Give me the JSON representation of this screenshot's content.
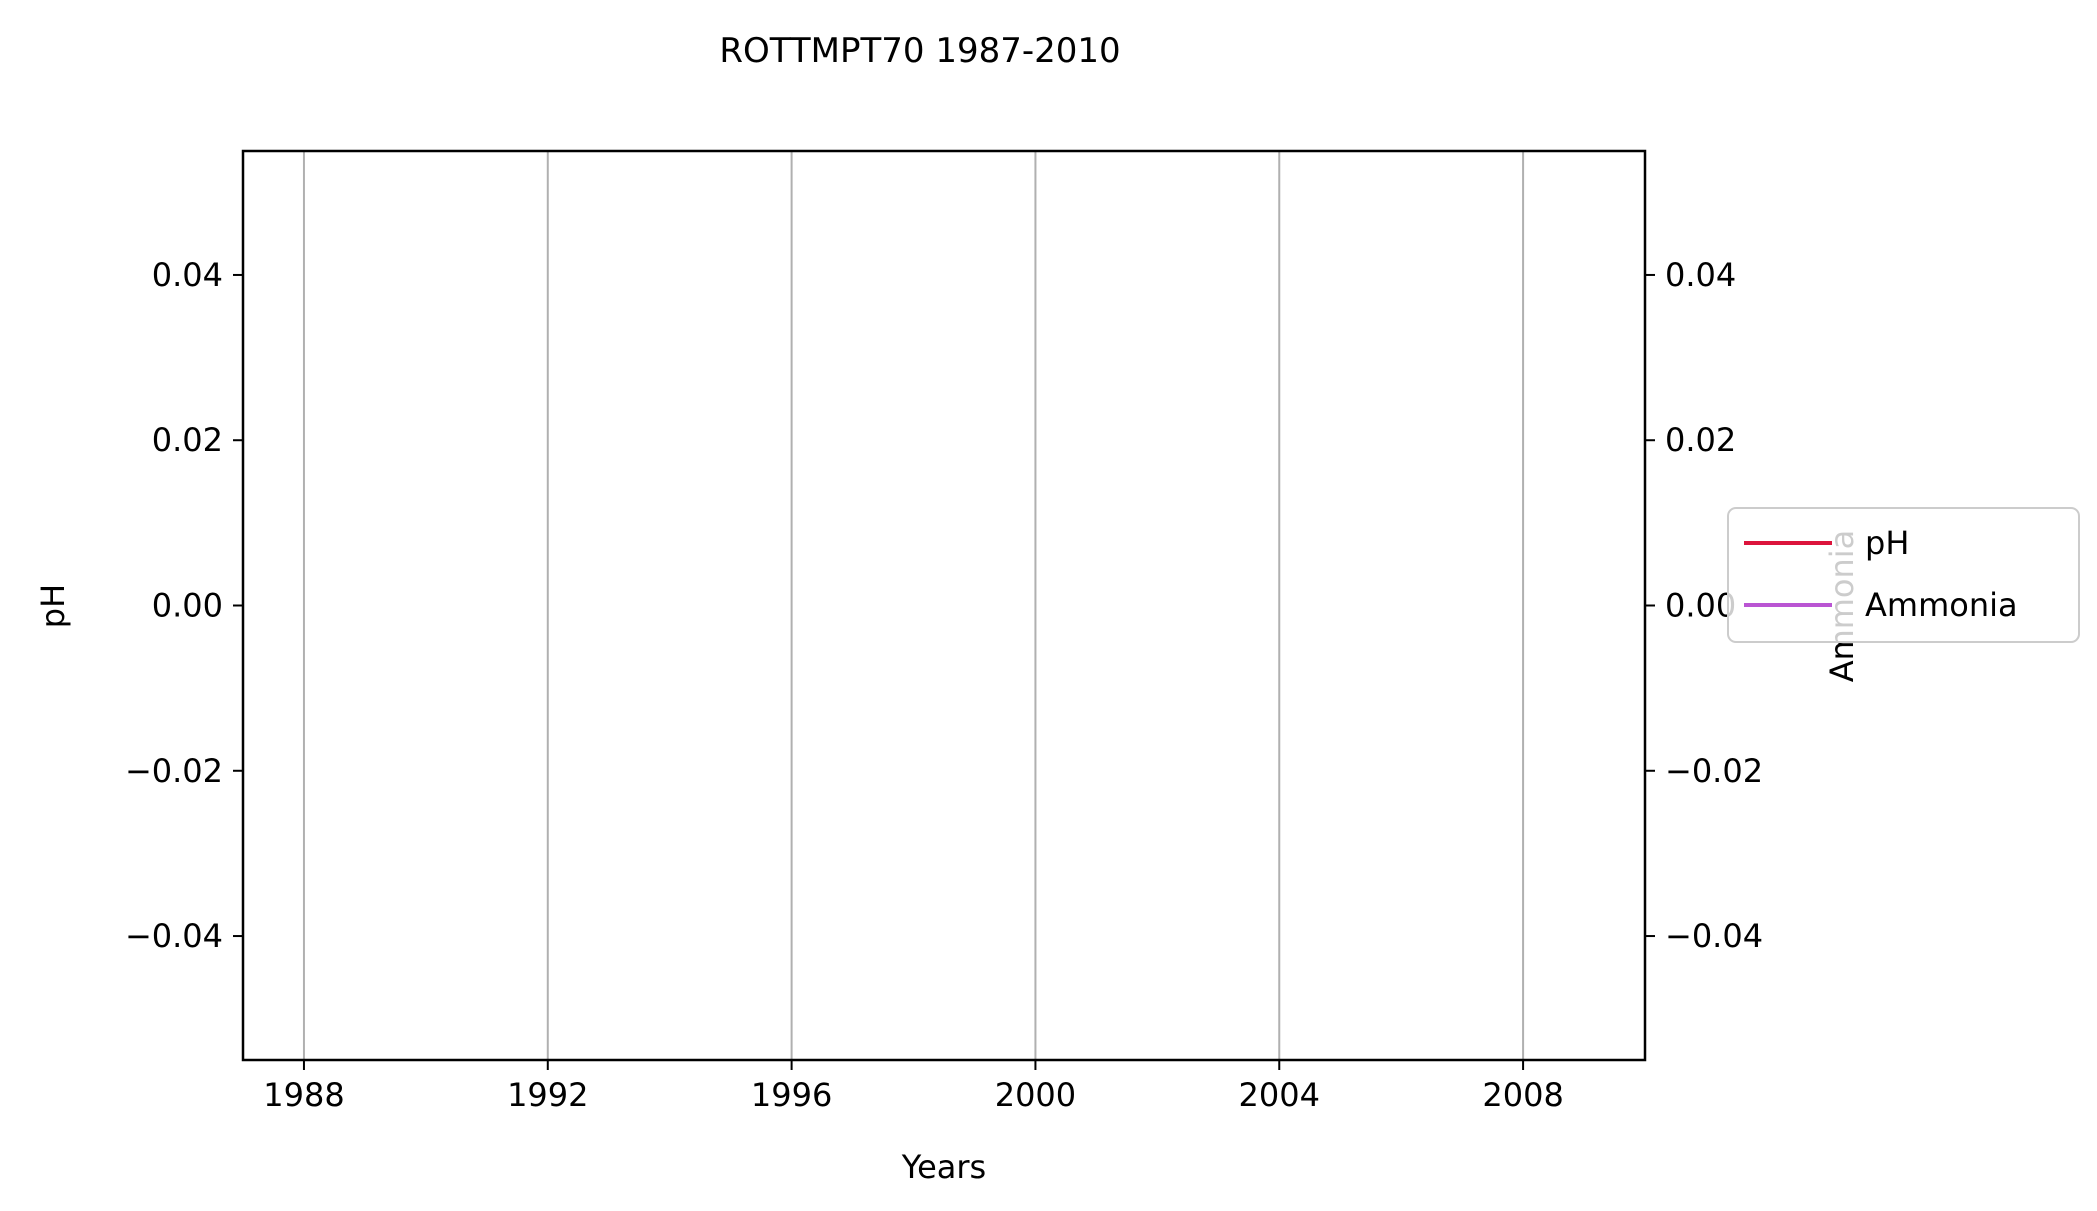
{
  "chart_data": {
    "type": "line",
    "title": "ROTTMPT70 1987-2010",
    "xlabel": "Years",
    "ylabel": "pH",
    "ylabel_right": "Ammonia",
    "xlim": [
      1987,
      2010
    ],
    "ylim": [
      -0.055,
      0.055
    ],
    "ylim_right": [
      -0.055,
      0.055
    ],
    "x_ticks": [
      1988,
      1992,
      1996,
      2000,
      2004,
      2008
    ],
    "x_tick_labels": [
      "1988",
      "1992",
      "1996",
      "2000",
      "2004",
      "2008"
    ],
    "y_ticks": [
      0.04,
      0.02,
      0.0,
      -0.02,
      -0.04
    ],
    "y_tick_labels": [
      "0.04",
      "0.02",
      "0.00",
      "−0.02",
      "−0.04"
    ],
    "y_right_ticks": [
      0.04,
      0.02,
      0.0,
      -0.02,
      -0.04
    ],
    "y_right_tick_labels": [
      "0.04",
      "0.02",
      "0.00",
      "−0.02",
      "−0.04"
    ],
    "grid": "x",
    "legend_position": "right",
    "series": [
      {
        "name": "pH",
        "color": "#dc143c",
        "axis": "left",
        "x": [],
        "values": []
      },
      {
        "name": "Ammonia",
        "color": "#ba55d3",
        "axis": "right",
        "x": [],
        "values": []
      }
    ]
  }
}
